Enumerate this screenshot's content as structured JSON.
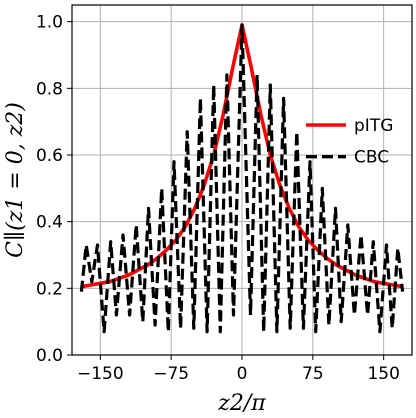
{
  "chart_data": {
    "type": "line",
    "title": "",
    "xlabel": "z2/π",
    "ylabel": "C∥(z1 = 0, z2)",
    "xlim": [
      -180,
      180
    ],
    "ylim": [
      0,
      1.05
    ],
    "xticks": [
      -150,
      -75,
      0,
      75,
      150
    ],
    "yticks": [
      0.0,
      0.2,
      0.4,
      0.6,
      0.8,
      1.0
    ],
    "xtick_labels": [
      "−150",
      "−75",
      "0",
      "75",
      "150"
    ],
    "ytick_labels": [
      "0.0",
      "0.2",
      "0.4",
      "0.6",
      "0.8",
      "1.0"
    ],
    "grid": true,
    "legend_placement": "right",
    "series": [
      {
        "name": "pITG",
        "color": "#ff0000",
        "style": "solid",
        "x": [
          -170,
          -160,
          -150,
          -140,
          -130,
          -120,
          -110,
          -100,
          -90,
          -80,
          -70,
          -60,
          -50,
          -40,
          -30,
          -20,
          -10,
          0,
          10,
          20,
          30,
          40,
          50,
          60,
          70,
          80,
          90,
          100,
          110,
          120,
          130,
          140,
          150,
          160,
          170
        ],
        "y": [
          0.205,
          0.21,
          0.215,
          0.22,
          0.23,
          0.24,
          0.255,
          0.27,
          0.29,
          0.315,
          0.345,
          0.385,
          0.44,
          0.51,
          0.6,
          0.72,
          0.86,
          0.99,
          0.86,
          0.72,
          0.6,
          0.51,
          0.44,
          0.385,
          0.345,
          0.315,
          0.29,
          0.27,
          0.255,
          0.24,
          0.23,
          0.22,
          0.215,
          0.21,
          0.205
        ]
      },
      {
        "name": "CBC",
        "color": "#000000",
        "style": "dashed",
        "x": [
          -170,
          -165,
          -159,
          -153,
          -146,
          -139,
          -133,
          -126,
          -119,
          -112,
          -105,
          -99,
          -92,
          -85,
          -78,
          -72,
          -65,
          -58,
          -51,
          -44,
          -37,
          -30,
          -23,
          -16,
          -9,
          0,
          9,
          16,
          23,
          30,
          37,
          44,
          51,
          58,
          65,
          72,
          78,
          85,
          92,
          99,
          105,
          112,
          119,
          126,
          133,
          139,
          146,
          153,
          159,
          165,
          170
        ],
        "y": [
          0.19,
          0.33,
          0.22,
          0.33,
          0.07,
          0.34,
          0.12,
          0.36,
          0.12,
          0.39,
          0.1,
          0.44,
          0.09,
          0.5,
          0.07,
          0.58,
          0.08,
          0.67,
          0.08,
          0.77,
          0.07,
          0.81,
          0.07,
          0.84,
          0.12,
          0.99,
          0.12,
          0.84,
          0.07,
          0.81,
          0.07,
          0.77,
          0.08,
          0.67,
          0.08,
          0.58,
          0.07,
          0.5,
          0.09,
          0.44,
          0.1,
          0.39,
          0.12,
          0.36,
          0.12,
          0.34,
          0.07,
          0.33,
          0.08,
          0.32,
          0.19
        ]
      }
    ]
  }
}
